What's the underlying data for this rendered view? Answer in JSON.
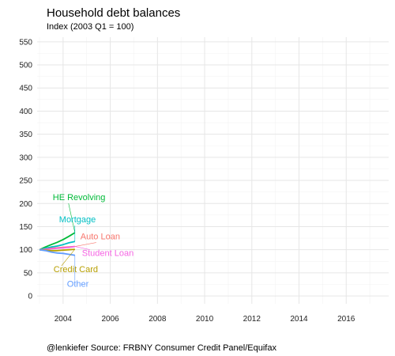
{
  "chart_data": {
    "type": "line",
    "title": "Household debt balances",
    "subtitle": "Index (2003 Q1 = 100)",
    "caption": "@lenkiefer Source: FRBNY Consumer Credit Panel/Equifax",
    "xlabel": "",
    "ylabel": "",
    "xlim": [
      2002.9,
      2017.8
    ],
    "ylim": [
      -17,
      560
    ],
    "x_ticks": [
      2004,
      2006,
      2008,
      2010,
      2012,
      2014,
      2016
    ],
    "x_tick_labels": [
      "2004",
      "2006",
      "2008",
      "2010",
      "2012",
      "2014",
      "2016"
    ],
    "y_ticks": [
      0,
      50,
      100,
      150,
      200,
      250,
      300,
      350,
      400,
      450,
      500,
      550
    ],
    "y_tick_labels": [
      "0",
      "50",
      "100",
      "150",
      "200",
      "250",
      "300",
      "350",
      "400",
      "450",
      "500",
      "550"
    ],
    "grid": true,
    "legend": "none (direct labels)",
    "series": [
      {
        "name": "HE Revolving",
        "color": "#00ba38",
        "x": [
          2003.0,
          2003.25,
          2003.5,
          2003.75,
          2004.0,
          2004.25,
          2004.5
        ],
        "y": [
          100,
          106,
          111,
          116,
          122,
          129,
          137
        ]
      },
      {
        "name": "Mortgage",
        "color": "#00bfc4",
        "x": [
          2003.0,
          2003.25,
          2003.5,
          2003.75,
          2004.0,
          2004.25,
          2004.5
        ],
        "y": [
          100,
          103,
          106,
          108,
          111,
          115,
          118
        ]
      },
      {
        "name": "Auto Loan",
        "color": "#f8766d",
        "x": [
          2003.0,
          2003.25,
          2003.5,
          2003.75,
          2004.0,
          2004.25,
          2004.5
        ],
        "y": [
          100,
          101,
          103,
          104,
          105,
          106,
          107
        ]
      },
      {
        "name": "Student Loan",
        "color": "#f564e3",
        "x": [
          2003.0,
          2003.25,
          2003.5,
          2003.75,
          2004.0,
          2004.25,
          2004.5
        ],
        "y": [
          100,
          101,
          102,
          103,
          104,
          105,
          107
        ]
      },
      {
        "name": "Credit Card",
        "color": "#b79f00",
        "x": [
          2003.0,
          2003.25,
          2003.5,
          2003.75,
          2004.0,
          2004.25,
          2004.5
        ],
        "y": [
          100,
          99,
          98,
          98,
          99,
          100,
          101
        ]
      },
      {
        "name": "Other",
        "color": "#619cff",
        "x": [
          2003.0,
          2003.25,
          2003.5,
          2003.75,
          2004.0,
          2004.25,
          2004.5
        ],
        "y": [
          100,
          98,
          95,
          93,
          92,
          90,
          88
        ]
      }
    ]
  }
}
